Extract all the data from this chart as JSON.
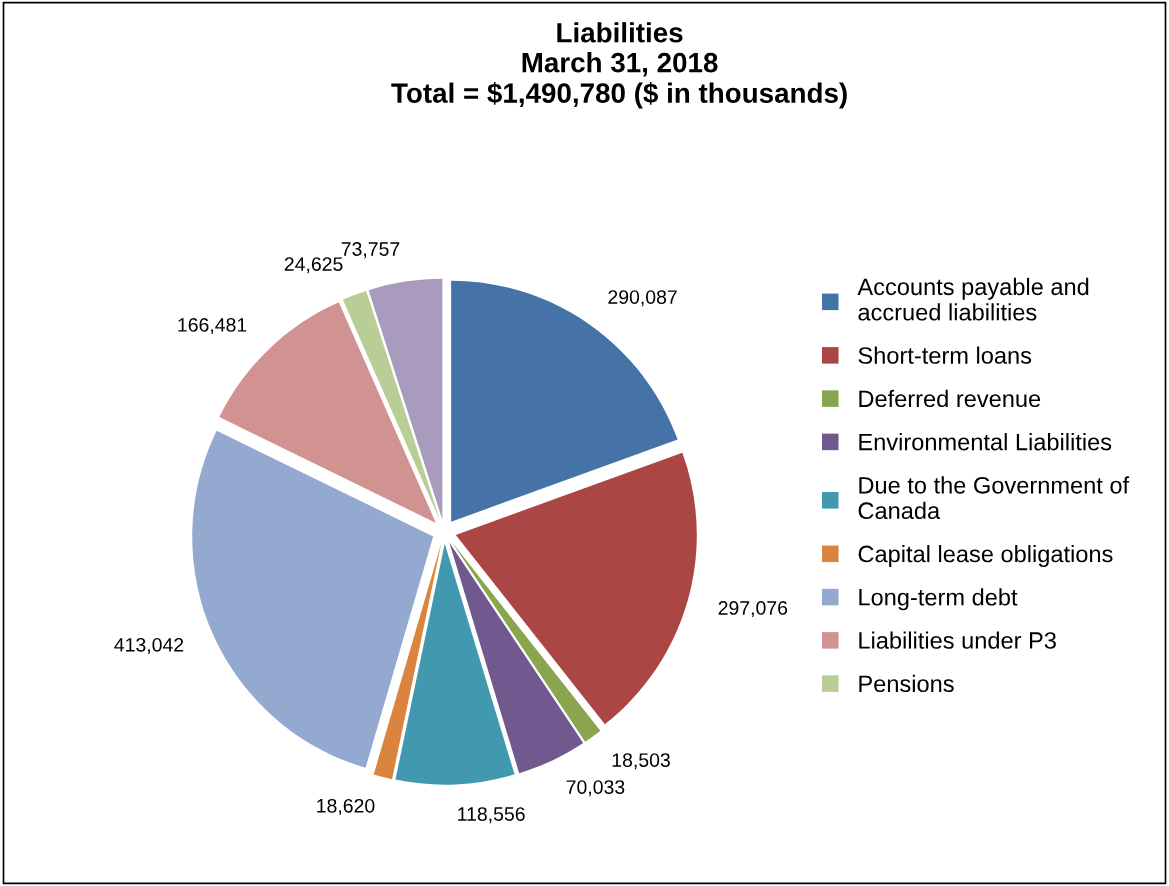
{
  "chart_data": {
    "type": "pie",
    "title": "Liabilities\nMarch 31, 2018\nTotal = $1,490,780 ($ in thousands)",
    "categories": [
      "Accounts payable and\naccrued liabilities",
      "Short-term loans",
      "Deferred revenue",
      "Environmental Liabilities",
      "Due to the Government of\nCanada",
      "Capital lease obligations",
      "Long-term debt",
      "Liabilities under P3",
      "Pensions",
      null
    ],
    "values": [
      290087,
      297076,
      18503,
      70033,
      118556,
      18620,
      413042,
      166481,
      24625,
      73757
    ],
    "colors": [
      "#4572a7",
      "#aa4643",
      "#89a54e",
      "#71588f",
      "#4198af",
      "#db843d",
      "#93a9cf",
      "#d19392",
      "#b9cd96",
      "#a99bbd"
    ],
    "value_labels": [
      "290,087",
      "297,076",
      "18,503",
      "70,033",
      "118,556",
      "18,620",
      "413,042",
      "166,481",
      "24,625",
      "73,757"
    ],
    "legend": "right"
  }
}
